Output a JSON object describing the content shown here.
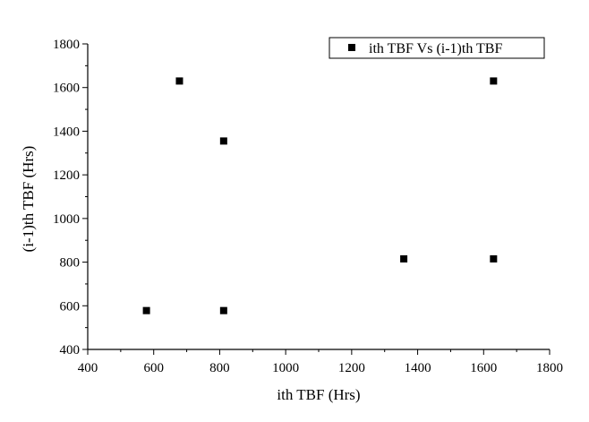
{
  "chart_data": {
    "type": "scatter",
    "title": "",
    "xlabel": "ith TBF (Hrs)",
    "ylabel": "(i-1)th TBF (Hrs)",
    "xlim": [
      400,
      1800
    ],
    "ylim": [
      400,
      1800
    ],
    "x_ticks": [
      "400",
      "600",
      "800",
      "1000",
      "1200",
      "1400",
      "1600",
      "1800"
    ],
    "y_ticks": [
      "400",
      "600",
      "800",
      "1000",
      "1200",
      "1400",
      "1600",
      "1800"
    ],
    "legend_position": "top-right",
    "grid": false,
    "series": [
      {
        "name": "ith TBF Vs (i-1)th TBF",
        "color": "#000000",
        "marker": "square",
        "points": [
          {
            "x": 678,
            "y": 1630
          },
          {
            "x": 812,
            "y": 1355
          },
          {
            "x": 1630,
            "y": 1630
          },
          {
            "x": 1358,
            "y": 815
          },
          {
            "x": 1630,
            "y": 815
          },
          {
            "x": 578,
            "y": 578
          },
          {
            "x": 812,
            "y": 578
          }
        ]
      }
    ]
  }
}
